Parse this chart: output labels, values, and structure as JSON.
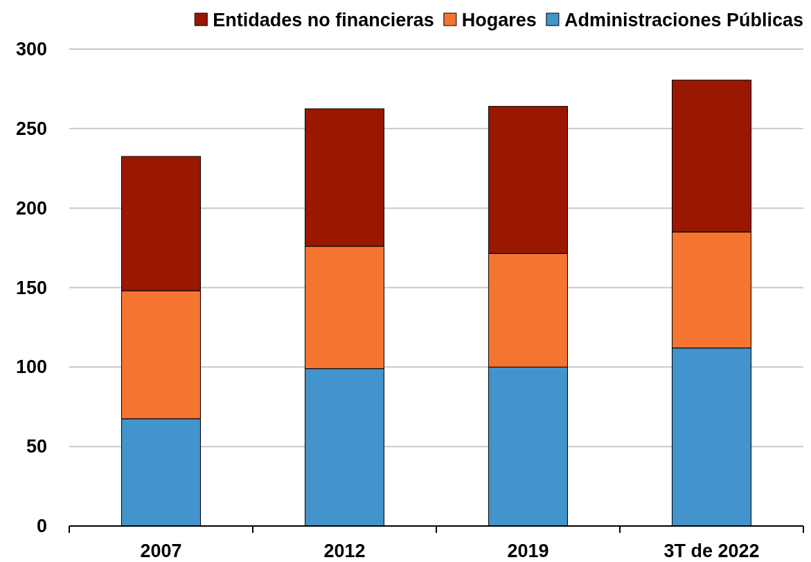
{
  "chart_data": {
    "type": "bar",
    "stacked": true,
    "categories": [
      "2007",
      "2012",
      "2019",
      "3T de 2022"
    ],
    "series": [
      {
        "name": "Administraciones Públicas",
        "color": "#4393cc",
        "values": [
          67.5,
          99,
          100,
          112
        ]
      },
      {
        "name": "Hogares",
        "color": "#f47430",
        "values": [
          80.5,
          77,
          71.5,
          73
        ]
      },
      {
        "name": "Entidades no financieras",
        "color": "#9a1800",
        "values": [
          84.5,
          86.5,
          92.5,
          95.5
        ]
      }
    ],
    "ylim": [
      0,
      300
    ],
    "yticks": [
      0,
      50,
      100,
      150,
      200,
      250,
      300
    ],
    "grid": "y",
    "legend": "top right"
  }
}
